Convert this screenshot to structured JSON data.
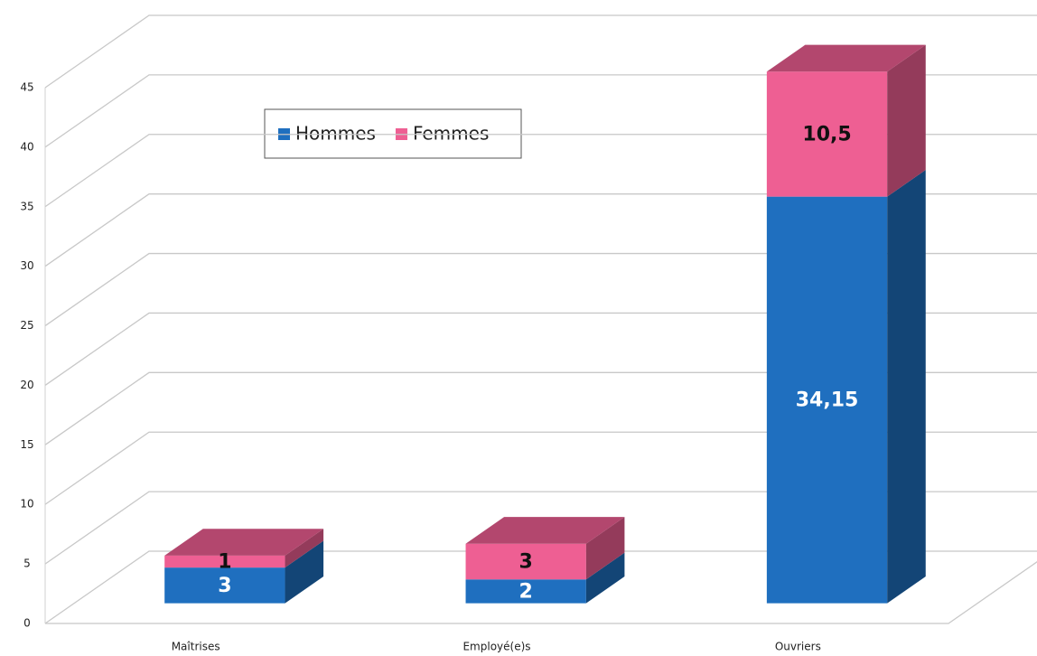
{
  "chart_data": {
    "type": "bar3d_stacked",
    "categories": [
      "Maîtrises",
      "Employé(e)s",
      "Ouvriers"
    ],
    "series": [
      {
        "name": "Hommes",
        "color": "#1f6fbf",
        "values": [
          3,
          2,
          34.15
        ],
        "value_labels": [
          "3",
          "2",
          "34,15"
        ]
      },
      {
        "name": "Femmes",
        "color": "#ee5f93",
        "values": [
          1,
          3,
          10.5
        ],
        "value_labels": [
          "1",
          "3",
          "10,5"
        ]
      }
    ],
    "ylim": [
      0,
      45
    ],
    "yticks": [
      0,
      5,
      10,
      15,
      20,
      25,
      30,
      35,
      40,
      45
    ],
    "grid": true
  }
}
